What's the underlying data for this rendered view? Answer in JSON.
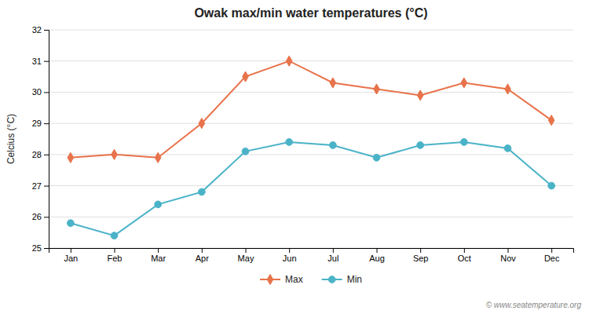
{
  "chart_data": {
    "type": "line",
    "title": "Owak max/min water temperatures (°C)",
    "ylabel": "Celcius (°C)",
    "categories": [
      "Jan",
      "Feb",
      "Mar",
      "Apr",
      "May",
      "Jun",
      "Jul",
      "Aug",
      "Sep",
      "Oct",
      "Nov",
      "Dec"
    ],
    "series": [
      {
        "name": "Max",
        "color": "#e8724a",
        "marker": "diamond",
        "values": [
          27.9,
          28.0,
          27.9,
          29.0,
          30.5,
          31.0,
          30.3,
          30.1,
          29.9,
          30.3,
          30.1,
          29.1
        ]
      },
      {
        "name": "Min",
        "color": "#4ab3c8",
        "marker": "circle",
        "values": [
          25.8,
          25.4,
          26.4,
          26.8,
          28.1,
          28.4,
          28.3,
          27.9,
          28.3,
          28.4,
          28.2,
          27.0
        ]
      }
    ],
    "ylim": [
      25.0,
      32.0
    ],
    "yticks": [
      25,
      26,
      27,
      28,
      29,
      30,
      31,
      32
    ],
    "grid": true,
    "legend": "bottom",
    "annotations": [
      "© www.seatemperature.org"
    ]
  }
}
